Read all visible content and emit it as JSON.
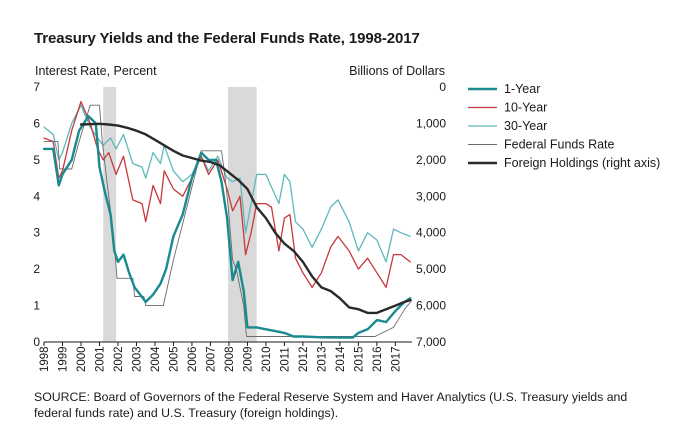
{
  "chart_data": {
    "type": "line",
    "title": "Treasury Yields and the Federal Funds Rate, 1998-2017",
    "ylabel": "Interest Rate, Percent",
    "y2label": "Billions of Dollars",
    "ylim": [
      0,
      7
    ],
    "y2lim": [
      0,
      7000
    ],
    "y2_inverted": true,
    "xlim": [
      1998,
      2017.9
    ],
    "xticks": [
      "1998",
      "1999",
      "2000",
      "2001",
      "2002",
      "2003",
      "2004",
      "2005",
      "2006",
      "2007",
      "2008",
      "2009",
      "2010",
      "2011",
      "2012",
      "2013",
      "2014",
      "2015",
      "2016",
      "2017"
    ],
    "yticks": [
      "0",
      "1",
      "2",
      "3",
      "4",
      "5",
      "6",
      "7"
    ],
    "y2ticks": [
      "0",
      "1,000",
      "2,000",
      "3,000",
      "4,000",
      "5,000",
      "6,000",
      "7,000"
    ],
    "legend_position": "right",
    "recessions": [
      [
        2001.2,
        2001.9
      ],
      [
        2007.95,
        2009.5
      ]
    ],
    "series": [
      {
        "name": "1-Year",
        "color": "#1a8a8e",
        "axis": "left",
        "points": [
          [
            1998,
            5.3
          ],
          [
            1998.5,
            5.3
          ],
          [
            1998.8,
            4.3
          ],
          [
            1999,
            4.6
          ],
          [
            1999.5,
            5.0
          ],
          [
            1999.9,
            5.8
          ],
          [
            2000.4,
            6.2
          ],
          [
            2000.8,
            6.0
          ],
          [
            2001,
            4.8
          ],
          [
            2001.3,
            4.1
          ],
          [
            2001.6,
            3.5
          ],
          [
            2001.8,
            2.5
          ],
          [
            2002,
            2.2
          ],
          [
            2002.3,
            2.4
          ],
          [
            2002.6,
            1.9
          ],
          [
            2002.9,
            1.5
          ],
          [
            2003.2,
            1.3
          ],
          [
            2003.5,
            1.1
          ],
          [
            2003.9,
            1.3
          ],
          [
            2004.3,
            1.6
          ],
          [
            2004.6,
            2.0
          ],
          [
            2005,
            2.9
          ],
          [
            2005.5,
            3.5
          ],
          [
            2006,
            4.5
          ],
          [
            2006.5,
            5.2
          ],
          [
            2006.9,
            5.0
          ],
          [
            2007.3,
            5.0
          ],
          [
            2007.6,
            4.4
          ],
          [
            2007.9,
            3.4
          ],
          [
            2008.2,
            1.7
          ],
          [
            2008.5,
            2.2
          ],
          [
            2008.8,
            1.4
          ],
          [
            2009,
            0.4
          ],
          [
            2009.5,
            0.4
          ],
          [
            2010,
            0.35
          ],
          [
            2010.5,
            0.3
          ],
          [
            2011,
            0.25
          ],
          [
            2011.5,
            0.15
          ],
          [
            2012,
            0.15
          ],
          [
            2013,
            0.13
          ],
          [
            2014,
            0.12
          ],
          [
            2014.7,
            0.12
          ],
          [
            2015,
            0.25
          ],
          [
            2015.5,
            0.35
          ],
          [
            2016,
            0.6
          ],
          [
            2016.5,
            0.55
          ],
          [
            2017,
            0.85
          ],
          [
            2017.5,
            1.1
          ],
          [
            2017.8,
            1.2
          ]
        ]
      },
      {
        "name": "10-Year",
        "color": "#c8373b",
        "axis": "left",
        "points": [
          [
            1998,
            5.6
          ],
          [
            1998.5,
            5.5
          ],
          [
            1998.8,
            4.5
          ],
          [
            1999,
            4.7
          ],
          [
            1999.5,
            5.8
          ],
          [
            2000,
            6.6
          ],
          [
            2000.5,
            6.0
          ],
          [
            2000.9,
            5.3
          ],
          [
            2001.2,
            5.0
          ],
          [
            2001.5,
            5.2
          ],
          [
            2001.9,
            4.6
          ],
          [
            2002.3,
            5.1
          ],
          [
            2002.8,
            3.9
          ],
          [
            2003.3,
            3.8
          ],
          [
            2003.5,
            3.3
          ],
          [
            2003.9,
            4.3
          ],
          [
            2004.3,
            3.8
          ],
          [
            2004.5,
            4.7
          ],
          [
            2005,
            4.2
          ],
          [
            2005.5,
            4.0
          ],
          [
            2006,
            4.5
          ],
          [
            2006.5,
            5.1
          ],
          [
            2006.9,
            4.6
          ],
          [
            2007.4,
            5.0
          ],
          [
            2007.9,
            4.2
          ],
          [
            2008.2,
            3.6
          ],
          [
            2008.6,
            4.0
          ],
          [
            2008.9,
            2.4
          ],
          [
            2009.2,
            3.0
          ],
          [
            2009.5,
            3.8
          ],
          [
            2010,
            3.8
          ],
          [
            2010.3,
            3.7
          ],
          [
            2010.7,
            2.5
          ],
          [
            2011,
            3.4
          ],
          [
            2011.3,
            3.5
          ],
          [
            2011.6,
            2.3
          ],
          [
            2012,
            1.9
          ],
          [
            2012.5,
            1.5
          ],
          [
            2013,
            1.9
          ],
          [
            2013.5,
            2.6
          ],
          [
            2013.9,
            2.9
          ],
          [
            2014.5,
            2.5
          ],
          [
            2015,
            2.0
          ],
          [
            2015.5,
            2.3
          ],
          [
            2016,
            1.9
          ],
          [
            2016.5,
            1.5
          ],
          [
            2016.9,
            2.4
          ],
          [
            2017.3,
            2.4
          ],
          [
            2017.8,
            2.2
          ]
        ]
      },
      {
        "name": "30-Year",
        "color": "#5eb8bc",
        "axis": "left",
        "points": [
          [
            1998,
            5.9
          ],
          [
            1998.5,
            5.7
          ],
          [
            1998.8,
            5.0
          ],
          [
            1999,
            5.2
          ],
          [
            1999.5,
            6.0
          ],
          [
            2000,
            6.5
          ],
          [
            2000.5,
            5.9
          ],
          [
            2000.9,
            5.6
          ],
          [
            2001.2,
            5.4
          ],
          [
            2001.6,
            5.6
          ],
          [
            2001.9,
            5.3
          ],
          [
            2002.3,
            5.7
          ],
          [
            2002.8,
            4.9
          ],
          [
            2003.3,
            4.8
          ],
          [
            2003.5,
            4.5
          ],
          [
            2003.9,
            5.2
          ],
          [
            2004.3,
            4.9
          ],
          [
            2004.5,
            5.4
          ],
          [
            2005,
            4.7
          ],
          [
            2005.5,
            4.4
          ],
          [
            2006,
            4.6
          ],
          [
            2006.5,
            5.1
          ],
          [
            2006.9,
            4.7
          ],
          [
            2007.4,
            5.1
          ],
          [
            2007.9,
            4.5
          ],
          [
            2008.2,
            4.4
          ],
          [
            2008.6,
            4.5
          ],
          [
            2008.9,
            3.0
          ],
          [
            2009.2,
            3.8
          ],
          [
            2009.5,
            4.6
          ],
          [
            2010,
            4.6
          ],
          [
            2010.7,
            3.8
          ],
          [
            2011,
            4.6
          ],
          [
            2011.3,
            4.4
          ],
          [
            2011.6,
            3.3
          ],
          [
            2012,
            3.1
          ],
          [
            2012.5,
            2.6
          ],
          [
            2013,
            3.1
          ],
          [
            2013.5,
            3.7
          ],
          [
            2013.9,
            3.9
          ],
          [
            2014.5,
            3.3
          ],
          [
            2015,
            2.5
          ],
          [
            2015.5,
            3.0
          ],
          [
            2016,
            2.8
          ],
          [
            2016.5,
            2.2
          ],
          [
            2016.9,
            3.1
          ],
          [
            2017.3,
            3.0
          ],
          [
            2017.8,
            2.9
          ]
        ]
      },
      {
        "name": "Federal Funds Rate",
        "color": "#6b6b6b",
        "axis": "left",
        "points": [
          [
            1998,
            5.5
          ],
          [
            1998.75,
            5.5
          ],
          [
            1998.85,
            4.75
          ],
          [
            1999.5,
            4.75
          ],
          [
            1999.9,
            5.5
          ],
          [
            2000.5,
            6.5
          ],
          [
            2001,
            6.5
          ],
          [
            2001.15,
            5.5
          ],
          [
            2001.5,
            4.0
          ],
          [
            2001.75,
            3.0
          ],
          [
            2001.95,
            1.75
          ],
          [
            2002.8,
            1.75
          ],
          [
            2002.9,
            1.25
          ],
          [
            2003.4,
            1.25
          ],
          [
            2003.5,
            1.0
          ],
          [
            2004.45,
            1.0
          ],
          [
            2005,
            2.25
          ],
          [
            2005.5,
            3.25
          ],
          [
            2006,
            4.25
          ],
          [
            2006.5,
            5.25
          ],
          [
            2007.6,
            5.25
          ],
          [
            2007.8,
            4.5
          ],
          [
            2008,
            3.5
          ],
          [
            2008.2,
            2.25
          ],
          [
            2008.4,
            2.0
          ],
          [
            2008.8,
            1.0
          ],
          [
            2008.95,
            0.15
          ],
          [
            2015.9,
            0.15
          ],
          [
            2016.9,
            0.4
          ],
          [
            2017.2,
            0.65
          ],
          [
            2017.5,
            0.9
          ],
          [
            2017.9,
            1.15
          ]
        ]
      },
      {
        "name": "Foreign Holdings (right axis)",
        "color": "#2a2a2a",
        "axis": "right",
        "points": [
          [
            2000,
            1030
          ],
          [
            2000.5,
            1020
          ],
          [
            2001,
            1010
          ],
          [
            2001.5,
            1030
          ],
          [
            2002,
            1060
          ],
          [
            2002.5,
            1120
          ],
          [
            2003,
            1200
          ],
          [
            2003.5,
            1300
          ],
          [
            2004,
            1450
          ],
          [
            2004.5,
            1600
          ],
          [
            2005,
            1750
          ],
          [
            2005.5,
            1880
          ],
          [
            2006,
            1950
          ],
          [
            2006.5,
            2020
          ],
          [
            2007,
            2060
          ],
          [
            2007.5,
            2150
          ],
          [
            2008,
            2350
          ],
          [
            2008.5,
            2550
          ],
          [
            2009,
            2800
          ],
          [
            2009.5,
            3300
          ],
          [
            2010,
            3600
          ],
          [
            2010.5,
            4000
          ],
          [
            2011,
            4300
          ],
          [
            2011.5,
            4500
          ],
          [
            2012,
            4800
          ],
          [
            2012.5,
            5200
          ],
          [
            2013,
            5500
          ],
          [
            2013.5,
            5600
          ],
          [
            2014,
            5800
          ],
          [
            2014.5,
            6050
          ],
          [
            2015,
            6100
          ],
          [
            2015.5,
            6200
          ],
          [
            2016,
            6200
          ],
          [
            2016.5,
            6100
          ],
          [
            2017,
            6000
          ],
          [
            2017.5,
            5900
          ],
          [
            2017.8,
            5850
          ]
        ]
      }
    ]
  },
  "source_text": "SOURCE: Board of Governors of the Federal Reserve System and Haver Analytics (U.S. Treasury yields and federal funds rate) and U.S. Treasury (foreign holdings)."
}
